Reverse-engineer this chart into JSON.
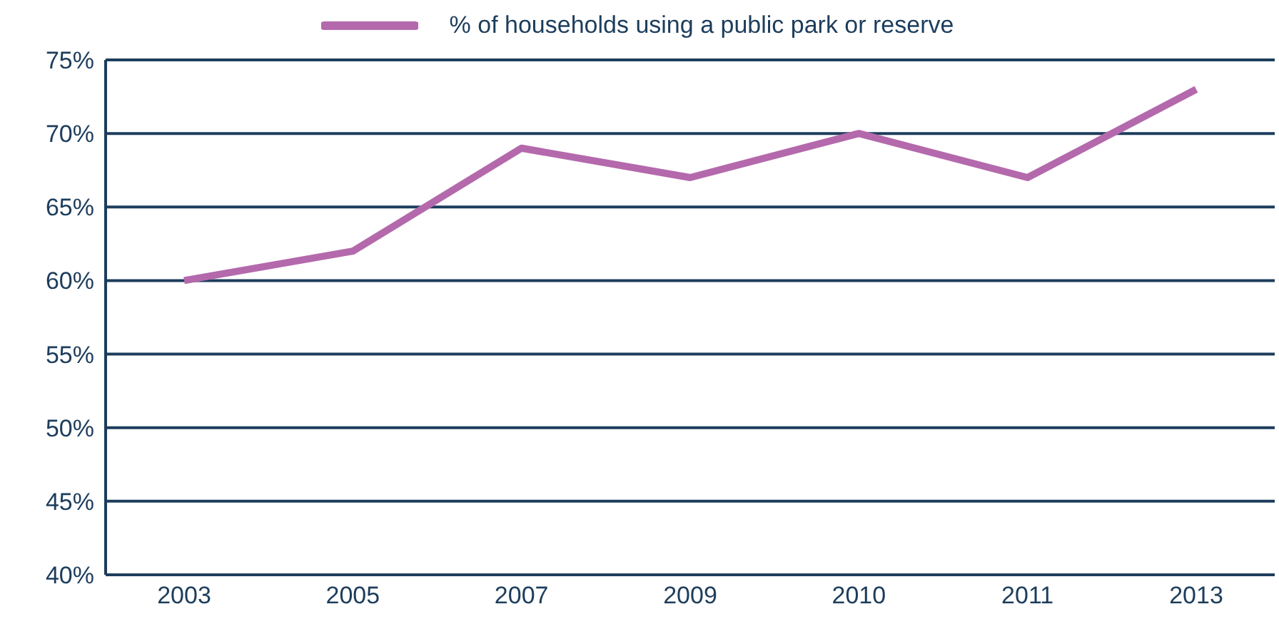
{
  "chart_data": {
    "type": "line",
    "categories": [
      "2003",
      "2005",
      "2007",
      "2009",
      "2010",
      "2011",
      "2013"
    ],
    "series": [
      {
        "name": "% of households using a public park or reserve",
        "color": "#b469ac",
        "values": [
          60,
          62,
          69,
          67,
          70,
          67,
          73
        ]
      }
    ],
    "ylim": [
      40,
      75
    ],
    "yticks": [
      {
        "value": 40,
        "label": "40%"
      },
      {
        "value": 45,
        "label": "45%"
      },
      {
        "value": 50,
        "label": "50%"
      },
      {
        "value": 55,
        "label": "55%"
      },
      {
        "value": 60,
        "label": "60%"
      },
      {
        "value": 65,
        "label": "65%"
      },
      {
        "value": 70,
        "label": "70%"
      },
      {
        "value": 75,
        "label": "75%"
      }
    ],
    "grid": "y",
    "legend": "top",
    "marker": "none",
    "line_style": "solid"
  }
}
